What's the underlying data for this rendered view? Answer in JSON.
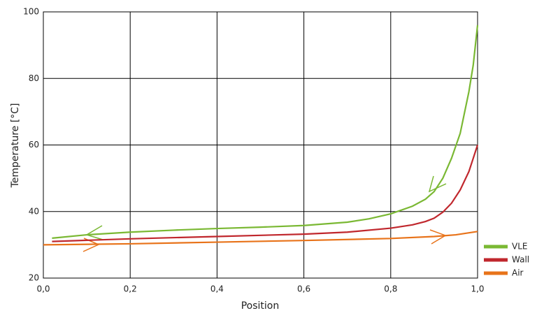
{
  "chart_data": {
    "type": "line",
    "x_label": "Position",
    "y_label": "Temperature [°C]",
    "xlim": [
      0,
      1
    ],
    "ylim": [
      20,
      100
    ],
    "xticks": [
      {
        "value": 0,
        "label": "0,0"
      },
      {
        "value": 0.2,
        "label": "0,2"
      },
      {
        "value": 0.4,
        "label": "0,4"
      },
      {
        "value": 0.6,
        "label": "0,6"
      },
      {
        "value": 0.8,
        "label": "0,8"
      },
      {
        "value": 1,
        "label": "1,0"
      }
    ],
    "yticks": [
      20,
      40,
      60,
      80,
      100
    ],
    "grid": true,
    "legend": "lower right",
    "series": [
      {
        "name": "VLE",
        "color": "#7ab833",
        "x": [
          0.02,
          0.1,
          0.2,
          0.3,
          0.4,
          0.5,
          0.6,
          0.7,
          0.75,
          0.8,
          0.85,
          0.88,
          0.9,
          0.92,
          0.94,
          0.96,
          0.98,
          0.99,
          1.0
        ],
        "values": [
          32,
          33,
          33.8,
          34.4,
          34.9,
          35.3,
          35.8,
          36.8,
          37.8,
          39.3,
          41.6,
          43.7,
          46,
          50,
          56,
          63.5,
          76,
          84,
          96
        ]
      },
      {
        "name": "Wall",
        "color": "#c0272d",
        "x": [
          0.02,
          0.2,
          0.4,
          0.6,
          0.7,
          0.8,
          0.85,
          0.88,
          0.9,
          0.92,
          0.94,
          0.96,
          0.98,
          0.99,
          1.0
        ],
        "values": [
          31,
          31.8,
          32.5,
          33.2,
          33.8,
          35,
          36,
          37,
          38,
          39.8,
          42.5,
          46.5,
          52,
          56,
          60
        ]
      },
      {
        "name": "Air",
        "color": "#e8731a",
        "x": [
          0.0,
          0.2,
          0.4,
          0.6,
          0.8,
          0.9,
          0.95,
          1.0
        ],
        "values": [
          30,
          30.3,
          30.8,
          31.3,
          31.9,
          32.5,
          33,
          34
        ]
      }
    ]
  }
}
